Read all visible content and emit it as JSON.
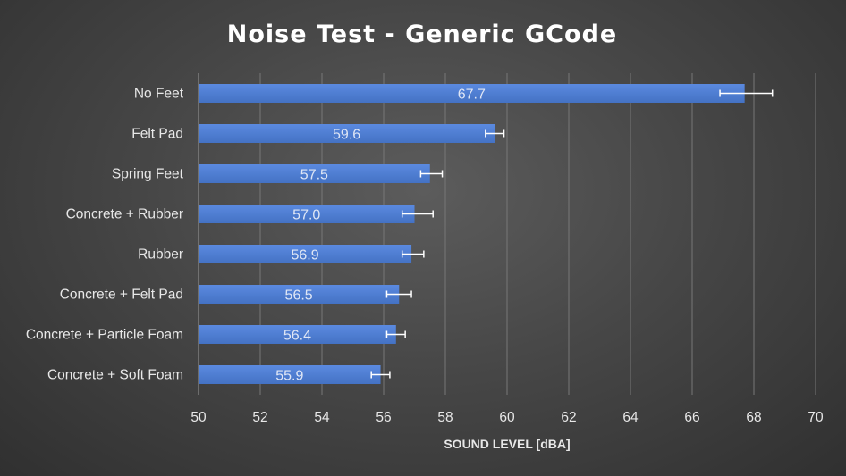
{
  "chart_data": {
    "type": "bar",
    "orientation": "horizontal",
    "title": "Noise Test - Generic GCode",
    "xlabel": "SOUND LEVEL [dBA]",
    "ylabel": "",
    "xlim": [
      50,
      70
    ],
    "xticks": [
      "50",
      "52",
      "54",
      "56",
      "58",
      "60",
      "62",
      "64",
      "66",
      "68",
      "70"
    ],
    "grid": true,
    "legend": "none",
    "bar_color": "#4472c4",
    "categories": [
      "No Feet",
      "Felt Pad",
      "Spring Feet",
      "Concrete + Rubber",
      "Rubber",
      "Concrete + Felt Pad",
      "Concrete + Particle Foam",
      "Concrete + Soft Foam"
    ],
    "values": [
      67.7,
      59.6,
      57.5,
      57.0,
      56.9,
      56.5,
      56.4,
      55.9
    ],
    "labels": [
      "67.7",
      "59.6",
      "57.5",
      "57.0",
      "56.9",
      "56.5",
      "56.4",
      "55.9"
    ],
    "error_low": [
      66.9,
      59.3,
      57.2,
      56.6,
      56.6,
      56.1,
      56.1,
      55.6
    ],
    "error_high": [
      68.6,
      59.9,
      57.9,
      57.6,
      57.3,
      56.9,
      56.7,
      56.2
    ]
  }
}
